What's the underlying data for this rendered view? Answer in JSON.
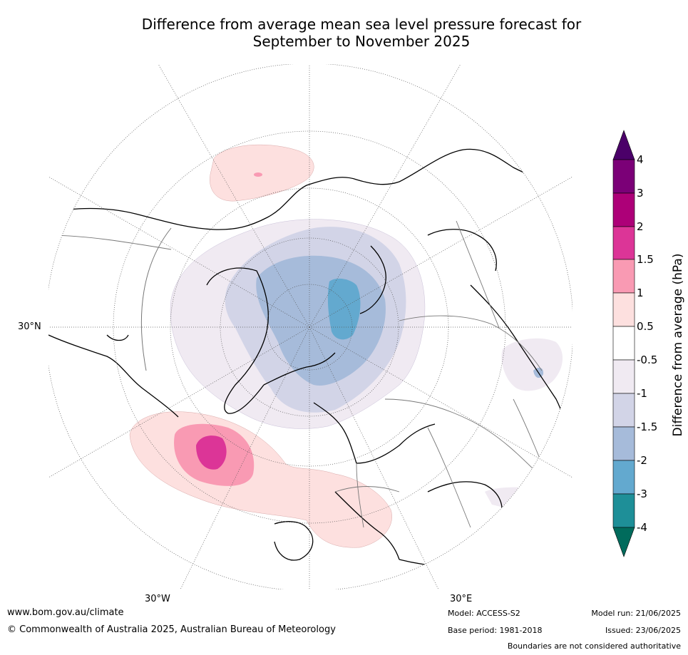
{
  "title_line1": "Difference from average mean sea level pressure forecast for",
  "title_line2": "September to November 2025",
  "map": {
    "lon_labels": [
      "30°W",
      "30°E"
    ],
    "lat_labels": [
      "30°N"
    ],
    "graticule_color": "#555555",
    "coast_color": "#000000",
    "border_color": "#777777"
  },
  "colorbar": {
    "title": "Difference from average (hPa)",
    "ticks": [
      "4",
      "3",
      "2",
      "1.5",
      "1",
      "0.5",
      "-0.5",
      "-1",
      "-1.5",
      "-2",
      "-3",
      "-4"
    ],
    "bins": [
      {
        "range": "above 4",
        "color": "#4b0069"
      },
      {
        "range": "3 to 4",
        "color": "#7b0077"
      },
      {
        "range": "2 to 3",
        "color": "#ad0078"
      },
      {
        "range": "1.5 to 2",
        "color": "#dc3597"
      },
      {
        "range": "1 to 1.5",
        "color": "#f99ab3"
      },
      {
        "range": "0.5 to 1",
        "color": "#fde0df"
      },
      {
        "range": "-0.5 to 0.5",
        "color": "#ffffff"
      },
      {
        "range": "-1 to -0.5",
        "color": "#f0eaf2"
      },
      {
        "range": "-1.5 to -1",
        "color": "#d2d4e7"
      },
      {
        "range": "-2 to -1.5",
        "color": "#a6bbda"
      },
      {
        "range": "-3 to -2",
        "color": "#63a9cf"
      },
      {
        "range": "-4 to -3",
        "color": "#1e8f98"
      },
      {
        "range": "below -4",
        "color": "#016b5c"
      }
    ]
  },
  "footer": {
    "website": "www.bom.gov.au/climate",
    "copyright": "© Commonwealth of Australia 2025, Australian Bureau of Meteorology",
    "model": "Model: ACCESS-S2",
    "base_period": "Base period: 1981-2018",
    "model_run": "Model run: 21/06/2025",
    "issued": "Issued: 23/06/2025",
    "disclaimer": "Boundaries are not considered authoritative"
  }
}
